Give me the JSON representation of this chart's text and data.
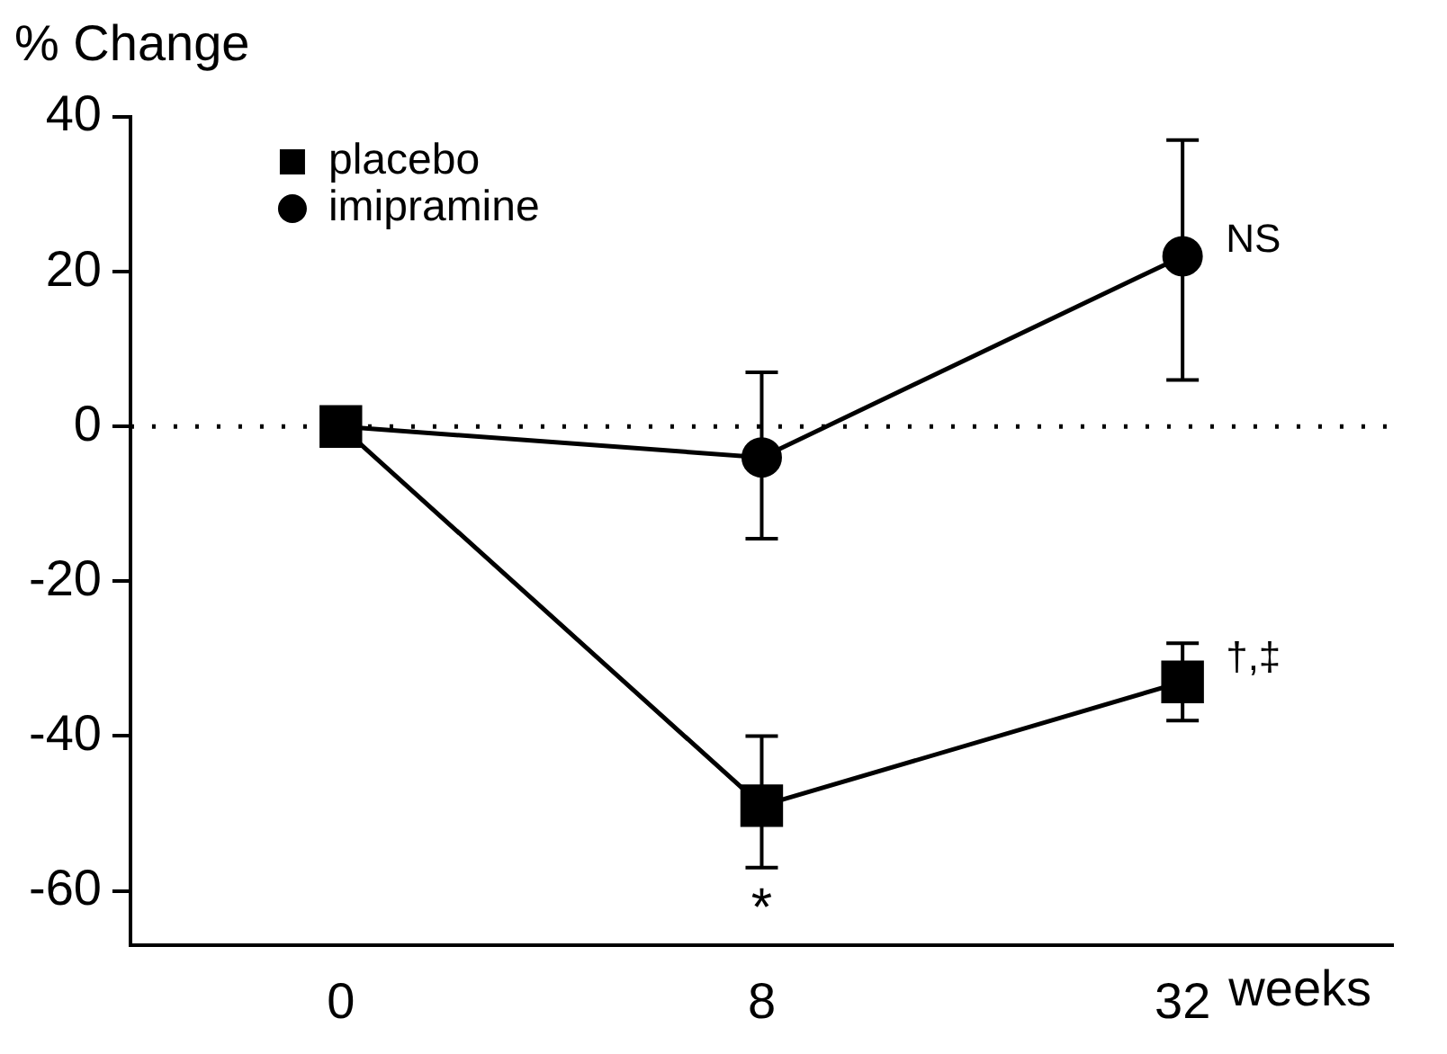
{
  "chart_data": {
    "type": "line",
    "ylabel": "% Change",
    "xlabel": "weeks",
    "categories": [
      "0",
      "8",
      "32"
    ],
    "series": [
      {
        "name": "placebo",
        "color": "#000000",
        "marker": "square",
        "values": [
          0,
          -49,
          -33
        ],
        "errors": [
          null,
          [
            -57,
            -40
          ],
          [
            -38,
            -28
          ]
        ]
      },
      {
        "name": "imipramine",
        "color": "#000000",
        "marker": "circle",
        "values": [
          0,
          -4,
          22
        ],
        "errors": [
          null,
          [
            -14.5,
            7
          ],
          [
            6,
            37
          ]
        ]
      }
    ],
    "ylim": [
      -67,
      40
    ],
    "yticks": [
      -60,
      -40,
      -20,
      0,
      20,
      40
    ],
    "grid": false,
    "legend": "top left",
    "line_style": "solid",
    "ref_lines": [
      {
        "axis": "y",
        "value": 0,
        "line_style": "dotted",
        "color": "#000000"
      }
    ],
    "annotations": [
      {
        "text": "*",
        "x": "8",
        "y": -57
      },
      {
        "text": "NS",
        "x": "32",
        "y": 24
      },
      {
        "text": "†,‡",
        "x": "32",
        "y": -30
      }
    ]
  }
}
